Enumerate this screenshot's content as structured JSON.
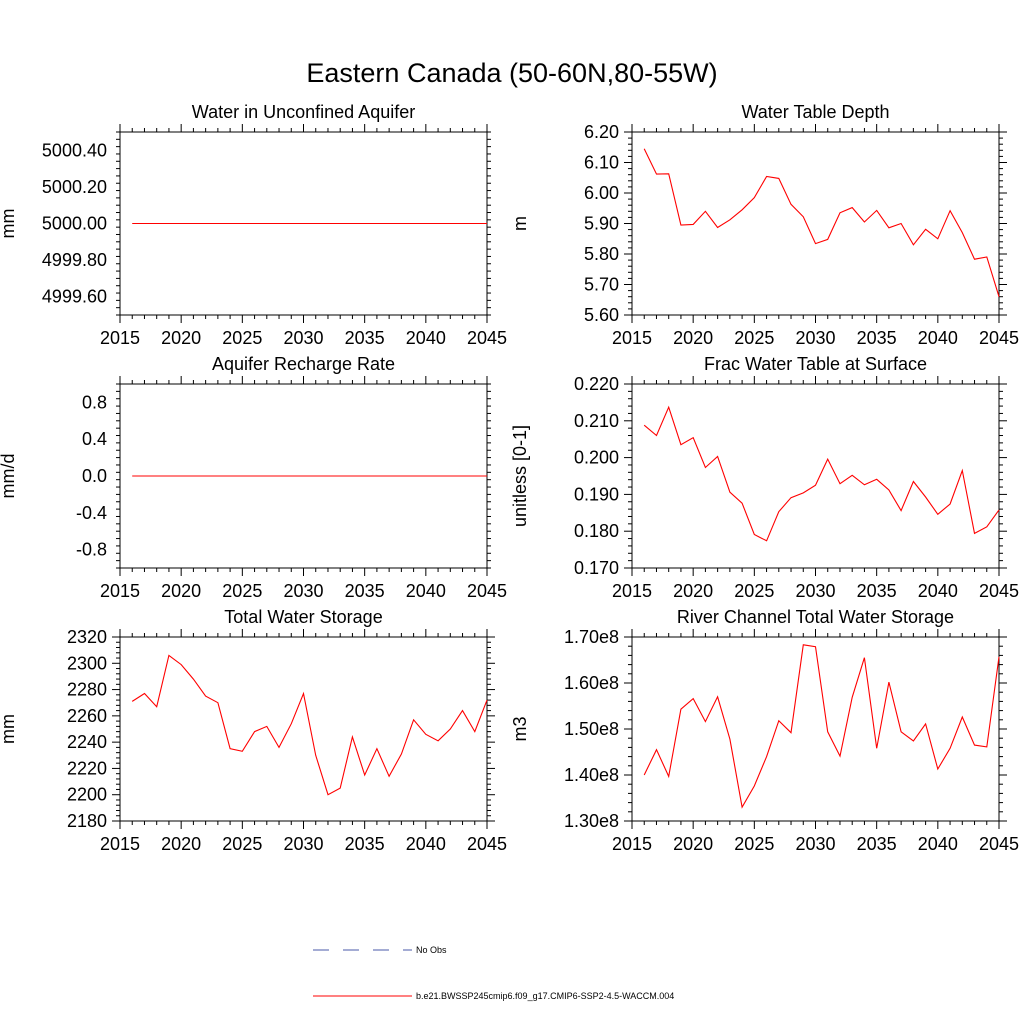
{
  "figure_title": "Eastern Canada (50-60N,80-55W)",
  "legend": {
    "entries": [
      {
        "label": "No Obs",
        "color": "#4a5aa8",
        "style": "dashed"
      },
      {
        "label": "b.e21.BWSSP245cmip6.f09_g17.CMIP6-SSP2-4.5-WACCM.004",
        "color": "#ff0000",
        "style": "solid"
      }
    ]
  },
  "chart_data": [
    {
      "type": "line",
      "title": "Water in Unconfined Aquifer",
      "ylabel": "mm",
      "xlabel": "",
      "xlim": [
        2015,
        2045
      ],
      "ylim": [
        4999.5,
        5000.5
      ],
      "x_ticks": [
        2015,
        2020,
        2025,
        2030,
        2035,
        2040,
        2045
      ],
      "y_ticks": [
        4999.6,
        4999.8,
        5000.0,
        5000.2,
        5000.4
      ],
      "y_tick_labels": [
        "4999.60",
        "4999.80",
        "5000.00",
        "5000.20",
        "5000.40"
      ],
      "series": [
        {
          "name": "b.e21.BWSSP245cmip6.f09_g17.CMIP6-SSP2-4.5-WACCM.004",
          "color": "#ff0000",
          "x": [
            2016,
            2017,
            2018,
            2019,
            2020,
            2021,
            2022,
            2023,
            2024,
            2025,
            2026,
            2027,
            2028,
            2029,
            2030,
            2031,
            2032,
            2033,
            2034,
            2035,
            2036,
            2037,
            2038,
            2039,
            2040,
            2041,
            2042,
            2043,
            2044,
            2045
          ],
          "values": [
            5000,
            5000,
            5000,
            5000,
            5000,
            5000,
            5000,
            5000,
            5000,
            5000,
            5000,
            5000,
            5000,
            5000,
            5000,
            5000,
            5000,
            5000,
            5000,
            5000,
            5000,
            5000,
            5000,
            5000,
            5000,
            5000,
            5000,
            5000,
            5000,
            5000
          ]
        }
      ]
    },
    {
      "type": "line",
      "title": "Water Table Depth",
      "ylabel": "m",
      "xlabel": "",
      "xlim": [
        2015,
        2045
      ],
      "ylim": [
        5.6,
        6.2
      ],
      "x_ticks": [
        2015,
        2020,
        2025,
        2030,
        2035,
        2040,
        2045
      ],
      "y_ticks": [
        5.6,
        5.7,
        5.8,
        5.9,
        6.0,
        6.1,
        6.2
      ],
      "y_tick_labels": [
        "5.60",
        "5.70",
        "5.80",
        "5.90",
        "6.00",
        "6.10",
        "6.20"
      ],
      "series": [
        {
          "name": "b.e21.BWSSP245cmip6.f09_g17.CMIP6-SSP2-4.5-WACCM.004",
          "color": "#ff0000",
          "x": [
            2016,
            2017,
            2018,
            2019,
            2020,
            2021,
            2022,
            2023,
            2024,
            2025,
            2026,
            2027,
            2028,
            2029,
            2030,
            2031,
            2032,
            2033,
            2034,
            2035,
            2036,
            2037,
            2038,
            2039,
            2040,
            2041,
            2042,
            2043,
            2044,
            2045
          ],
          "values": [
            6.145,
            6.062,
            6.063,
            5.895,
            5.897,
            5.94,
            5.887,
            5.912,
            5.945,
            5.985,
            6.054,
            6.048,
            5.963,
            5.922,
            5.834,
            5.848,
            5.935,
            5.952,
            5.905,
            5.943,
            5.886,
            5.9,
            5.83,
            5.881,
            5.85,
            5.942,
            5.87,
            5.783,
            5.79,
            5.66
          ]
        }
      ]
    },
    {
      "type": "line",
      "title": "Aquifer Recharge Rate",
      "ylabel": "mm/d",
      "xlabel": "",
      "xlim": [
        2015,
        2045
      ],
      "ylim": [
        -1.0,
        1.0
      ],
      "x_ticks": [
        2015,
        2020,
        2025,
        2030,
        2035,
        2040,
        2045
      ],
      "y_ticks": [
        -0.8,
        -0.4,
        0.0,
        0.4,
        0.8
      ],
      "y_tick_labels": [
        "-0.8",
        "-0.4",
        "0.0",
        "0.4",
        "0.8"
      ],
      "series": [
        {
          "name": "b.e21.BWSSP245cmip6.f09_g17.CMIP6-SSP2-4.5-WACCM.004",
          "color": "#ff0000",
          "x": [
            2016,
            2017,
            2018,
            2019,
            2020,
            2021,
            2022,
            2023,
            2024,
            2025,
            2026,
            2027,
            2028,
            2029,
            2030,
            2031,
            2032,
            2033,
            2034,
            2035,
            2036,
            2037,
            2038,
            2039,
            2040,
            2041,
            2042,
            2043,
            2044,
            2045
          ],
          "values": [
            0,
            0,
            0,
            0,
            0,
            0,
            0,
            0,
            0,
            0,
            0,
            0,
            0,
            0,
            0,
            0,
            0,
            0,
            0,
            0,
            0,
            0,
            0,
            0,
            0,
            0,
            0,
            0,
            0,
            0
          ]
        }
      ]
    },
    {
      "type": "line",
      "title": "Frac Water Table at Surface",
      "ylabel": "unitless [0-1]",
      "xlabel": "",
      "xlim": [
        2015,
        2045
      ],
      "ylim": [
        0.17,
        0.22
      ],
      "x_ticks": [
        2015,
        2020,
        2025,
        2030,
        2035,
        2040,
        2045
      ],
      "y_ticks": [
        0.17,
        0.18,
        0.19,
        0.2,
        0.21,
        0.22
      ],
      "y_tick_labels": [
        "0.170",
        "0.180",
        "0.190",
        "0.200",
        "0.210",
        "0.220"
      ],
      "series": [
        {
          "name": "b.e21.BWSSP245cmip6.f09_g17.CMIP6-SSP2-4.5-WACCM.004",
          "color": "#ff0000",
          "x": [
            2016,
            2017,
            2018,
            2019,
            2020,
            2021,
            2022,
            2023,
            2024,
            2025,
            2026,
            2027,
            2028,
            2029,
            2030,
            2031,
            2032,
            2033,
            2034,
            2035,
            2036,
            2037,
            2038,
            2039,
            2040,
            2041,
            2042,
            2043,
            2044,
            2045
          ],
          "values": [
            0.2088,
            0.206,
            0.2137,
            0.2035,
            0.2054,
            0.1973,
            0.2003,
            0.1906,
            0.1876,
            0.1791,
            0.1774,
            0.1853,
            0.1891,
            0.1904,
            0.1925,
            0.1996,
            0.1929,
            0.1952,
            0.1926,
            0.1941,
            0.1912,
            0.1856,
            0.1935,
            0.1893,
            0.1846,
            0.1874,
            0.1965,
            0.1794,
            0.1812,
            0.1858
          ]
        }
      ]
    },
    {
      "type": "line",
      "title": "Total Water Storage",
      "ylabel": "mm",
      "xlabel": "",
      "xlim": [
        2015,
        2045
      ],
      "ylim": [
        2180,
        2320
      ],
      "x_ticks": [
        2015,
        2020,
        2025,
        2030,
        2035,
        2040,
        2045
      ],
      "y_ticks": [
        2180,
        2200,
        2220,
        2240,
        2260,
        2280,
        2300,
        2320
      ],
      "y_tick_labels": [
        "2180",
        "2200",
        "2220",
        "2240",
        "2260",
        "2280",
        "2300",
        "2320"
      ],
      "series": [
        {
          "name": "b.e21.BWSSP245cmip6.f09_g17.CMIP6-SSP2-4.5-WACCM.004",
          "color": "#ff0000",
          "x": [
            2016,
            2017,
            2018,
            2019,
            2020,
            2021,
            2022,
            2023,
            2024,
            2025,
            2026,
            2027,
            2028,
            2029,
            2030,
            2031,
            2032,
            2033,
            2034,
            2035,
            2036,
            2037,
            2038,
            2039,
            2040,
            2041,
            2042,
            2043,
            2044,
            2045
          ],
          "values": [
            2271,
            2277,
            2267,
            2306,
            2299,
            2288,
            2275,
            2270,
            2235,
            2233,
            2248,
            2252,
            2236,
            2254,
            2277,
            2230,
            2200,
            2205,
            2244,
            2215,
            2235,
            2214,
            2231,
            2257,
            2246,
            2241,
            2250,
            2264,
            2248,
            2272
          ]
        }
      ]
    },
    {
      "type": "line",
      "title": "River Channel Total Water Storage",
      "ylabel": "m3",
      "xlabel": "",
      "xlim": [
        2015,
        2045
      ],
      "ylim": [
        130000000,
        170000000
      ],
      "x_ticks": [
        2015,
        2020,
        2025,
        2030,
        2035,
        2040,
        2045
      ],
      "y_ticks": [
        130000000,
        140000000,
        150000000,
        160000000,
        170000000
      ],
      "y_tick_labels": [
        "1.30e8",
        "1.40e8",
        "1.50e8",
        "1.60e8",
        "1.70e8"
      ],
      "series": [
        {
          "name": "b.e21.BWSSP245cmip6.f09_g17.CMIP6-SSP2-4.5-WACCM.004",
          "color": "#ff0000",
          "x": [
            2016,
            2017,
            2018,
            2019,
            2020,
            2021,
            2022,
            2023,
            2024,
            2025,
            2026,
            2027,
            2028,
            2029,
            2030,
            2031,
            2032,
            2033,
            2034,
            2035,
            2036,
            2037,
            2038,
            2039,
            2040,
            2041,
            2042,
            2043,
            2044,
            2045
          ],
          "values": [
            140000000,
            145500000,
            139700000,
            154300000,
            156600000,
            151600000,
            157000000,
            147800000,
            133000000,
            137600000,
            144000000,
            151800000,
            149200000,
            168300000,
            167900000,
            149400000,
            144100000,
            156900000,
            165500000,
            145800000,
            160200000,
            149400000,
            147400000,
            151100000,
            141300000,
            145800000,
            152600000,
            146500000,
            146100000,
            165700000
          ]
        }
      ]
    }
  ]
}
